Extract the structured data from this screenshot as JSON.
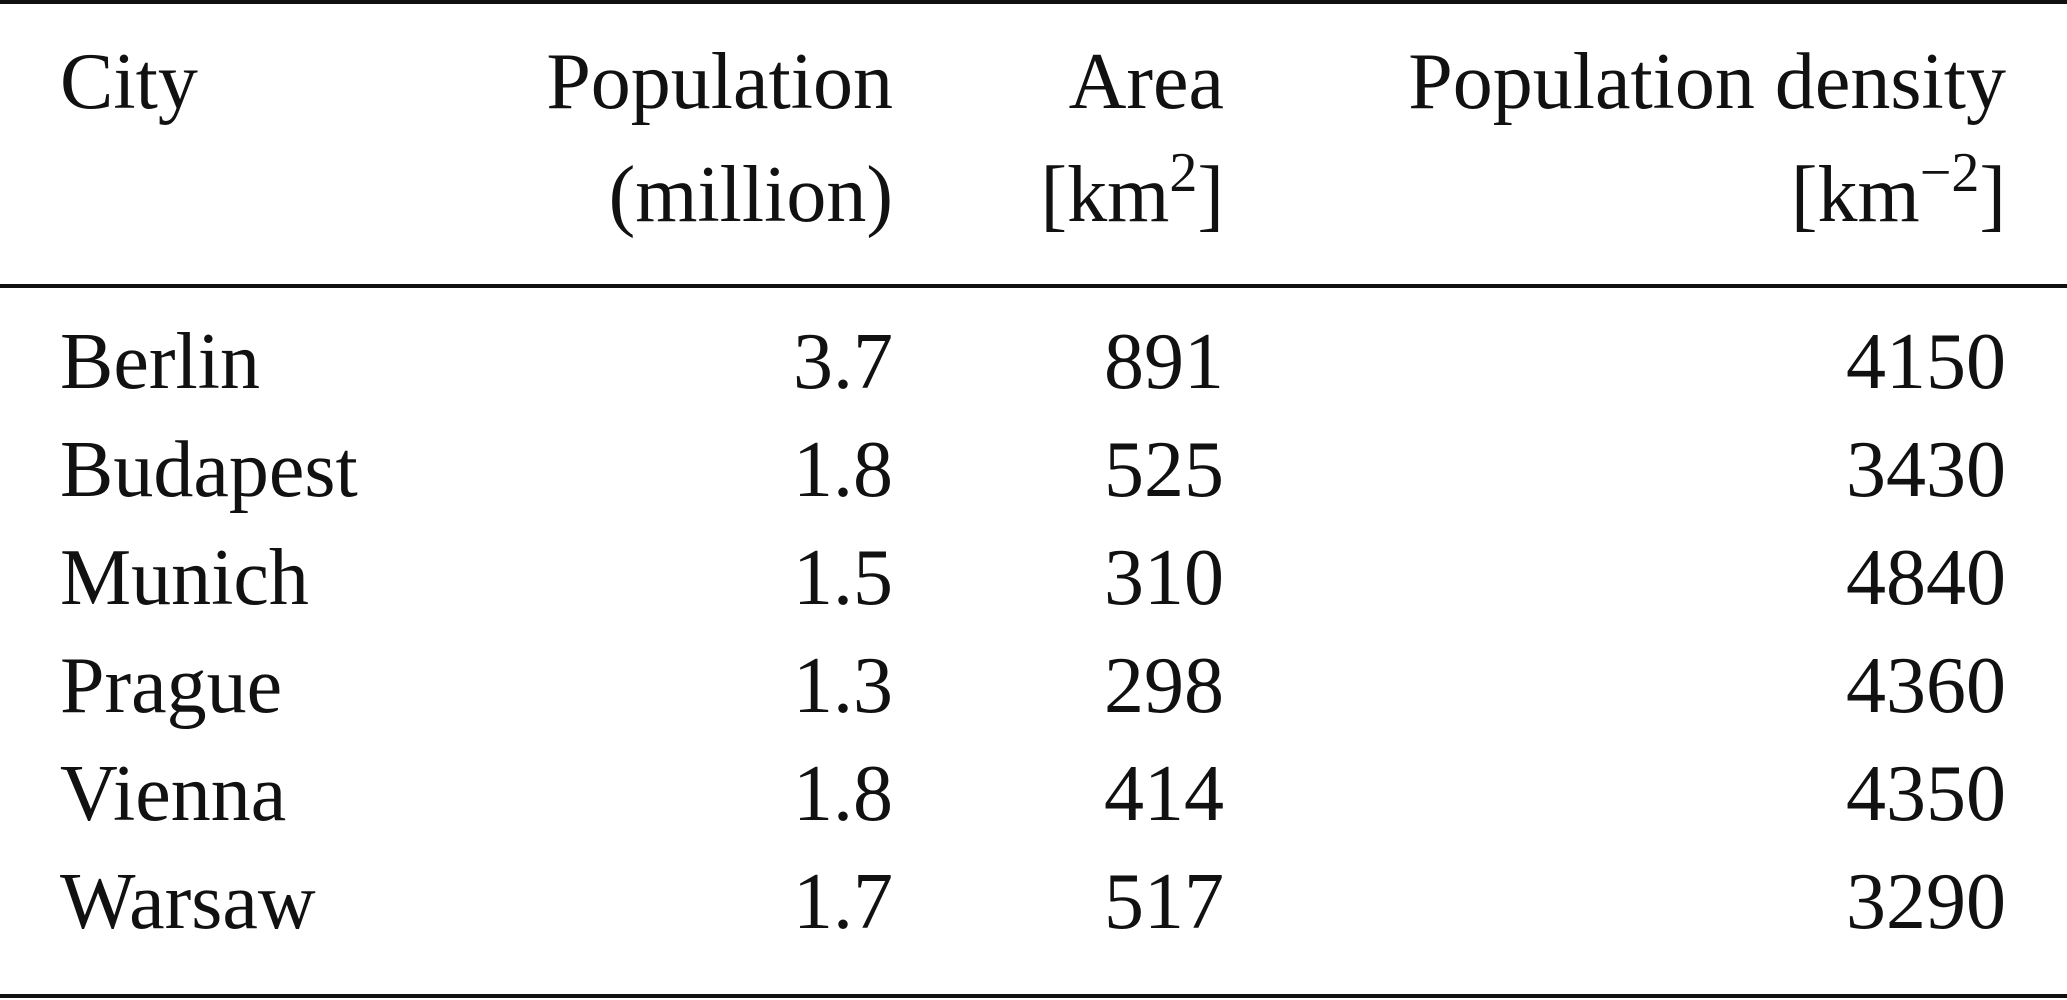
{
  "table": {
    "headers": {
      "city": "City",
      "population_line1": "Population",
      "population_line2": "(million)",
      "area_line1": "Area",
      "area_line2_pre": "[km",
      "area_line2_sup": "2",
      "area_line2_post": "]",
      "density_line1": "Population density",
      "density_line2_pre": "[km",
      "density_line2_sup": "−2",
      "density_line2_post": "]"
    },
    "rows": [
      {
        "city": "Berlin",
        "population": "3.7",
        "area": "891",
        "density": "4150"
      },
      {
        "city": "Budapest",
        "population": "1.8",
        "area": "525",
        "density": "3430"
      },
      {
        "city": "Munich",
        "population": "1.5",
        "area": "310",
        "density": "4840"
      },
      {
        "city": "Prague",
        "population": "1.3",
        "area": "298",
        "density": "4360"
      },
      {
        "city": "Vienna",
        "population": "1.8",
        "area": "414",
        "density": "4350"
      },
      {
        "city": "Warsaw",
        "population": "1.7",
        "area": "517",
        "density": "3290"
      }
    ]
  }
}
